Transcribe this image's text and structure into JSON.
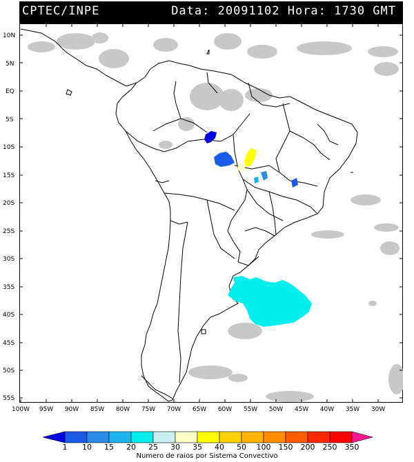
{
  "header": {
    "source": "CPTEC/INPE",
    "datetime": "Data: 20091102 Hora: 1730 GMT"
  },
  "map": {
    "lat_labels": [
      "10N",
      "5N",
      "EQ",
      "5S",
      "10S",
      "15S",
      "20S",
      "25S",
      "30S",
      "35S",
      "40S",
      "45S",
      "50S",
      "55S"
    ],
    "lon_labels": [
      "100W",
      "95W",
      "90W",
      "85W",
      "80W",
      "75W",
      "70W",
      "65W",
      "60W",
      "55W",
      "50W",
      "45W",
      "40W",
      "35W",
      "30W"
    ],
    "lat_range": [
      11,
      -56
    ],
    "lon_range": [
      -100,
      -28
    ]
  },
  "colorbar": {
    "ticks": [
      "1",
      "10",
      "15",
      "20",
      "25",
      "30",
      "35",
      "40",
      "50",
      "100",
      "150",
      "200",
      "250",
      "350"
    ],
    "colors": [
      "#0000e6",
      "#1a5ae6",
      "#2a8ce6",
      "#1eb4f0",
      "#00f0f0",
      "#c8f0f0",
      "#ffffc8",
      "#ffff00",
      "#ffd200",
      "#ffb400",
      "#ff8c00",
      "#ff5a00",
      "#ff2800",
      "#ff0000",
      "#ff1493"
    ],
    "label": "Numero de raios por Sistema Convectivo"
  },
  "systems": [
    {
      "name": "system-acre-north",
      "lon": -64,
      "lat": -9,
      "count_class": "1-10",
      "color": "#0000e6"
    },
    {
      "name": "system-rondonia",
      "lon": -59.5,
      "lat": -12.5,
      "count_class": "10-15",
      "color": "#1a5ae6"
    },
    {
      "name": "system-mato-grosso-north",
      "lon": -54.5,
      "lat": -11.5,
      "count_class": "35-40",
      "color": "#ffff00"
    },
    {
      "name": "system-mato-grosso-center",
      "lon": -56,
      "lat": -13.5,
      "count_class": "30-35",
      "color": "#ffffc8"
    },
    {
      "name": "system-goias",
      "lon": -53.5,
      "lat": -15,
      "count_class": "15-20",
      "color": "#2a8ce6"
    },
    {
      "name": "system-bahia-west",
      "lon": -45,
      "lat": -16,
      "count_class": "10-15",
      "color": "#1a5ae6"
    },
    {
      "name": "system-argentina-coast",
      "lon": -51,
      "lat": -38,
      "count_class": "20-25",
      "color": "#00f0f0"
    }
  ]
}
